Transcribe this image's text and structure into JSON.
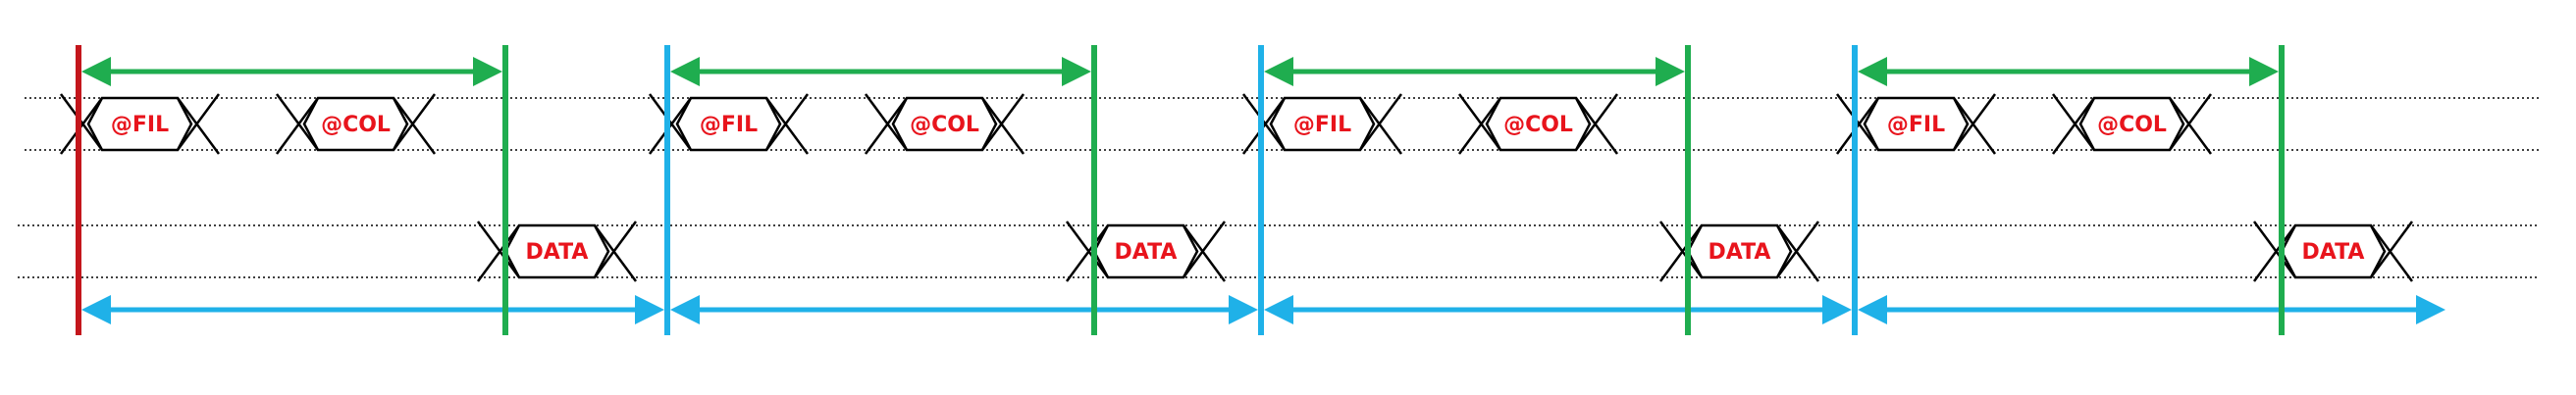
{
  "colors": {
    "start_marker": "#c4161c",
    "green_marker": "#1fad4f",
    "blue_marker": "#1fb1e8",
    "label_text": "#e8141c",
    "outline": "#000000"
  },
  "periods": [
    {
      "cells": [
        {
          "label": "@FIL",
          "row": "command"
        },
        {
          "label": "@COL",
          "row": "command"
        },
        {
          "label": "DATA",
          "row": "data"
        }
      ]
    },
    {
      "cells": [
        {
          "label": "@FIL",
          "row": "command"
        },
        {
          "label": "@COL",
          "row": "command"
        },
        {
          "label": "DATA",
          "row": "data"
        }
      ]
    },
    {
      "cells": [
        {
          "label": "@FIL",
          "row": "command"
        },
        {
          "label": "@COL",
          "row": "command"
        },
        {
          "label": "DATA",
          "row": "data"
        }
      ]
    },
    {
      "cells": [
        {
          "label": "@FIL",
          "row": "command"
        },
        {
          "label": "@COL",
          "row": "command"
        },
        {
          "label": "DATA",
          "row": "data"
        }
      ]
    }
  ]
}
